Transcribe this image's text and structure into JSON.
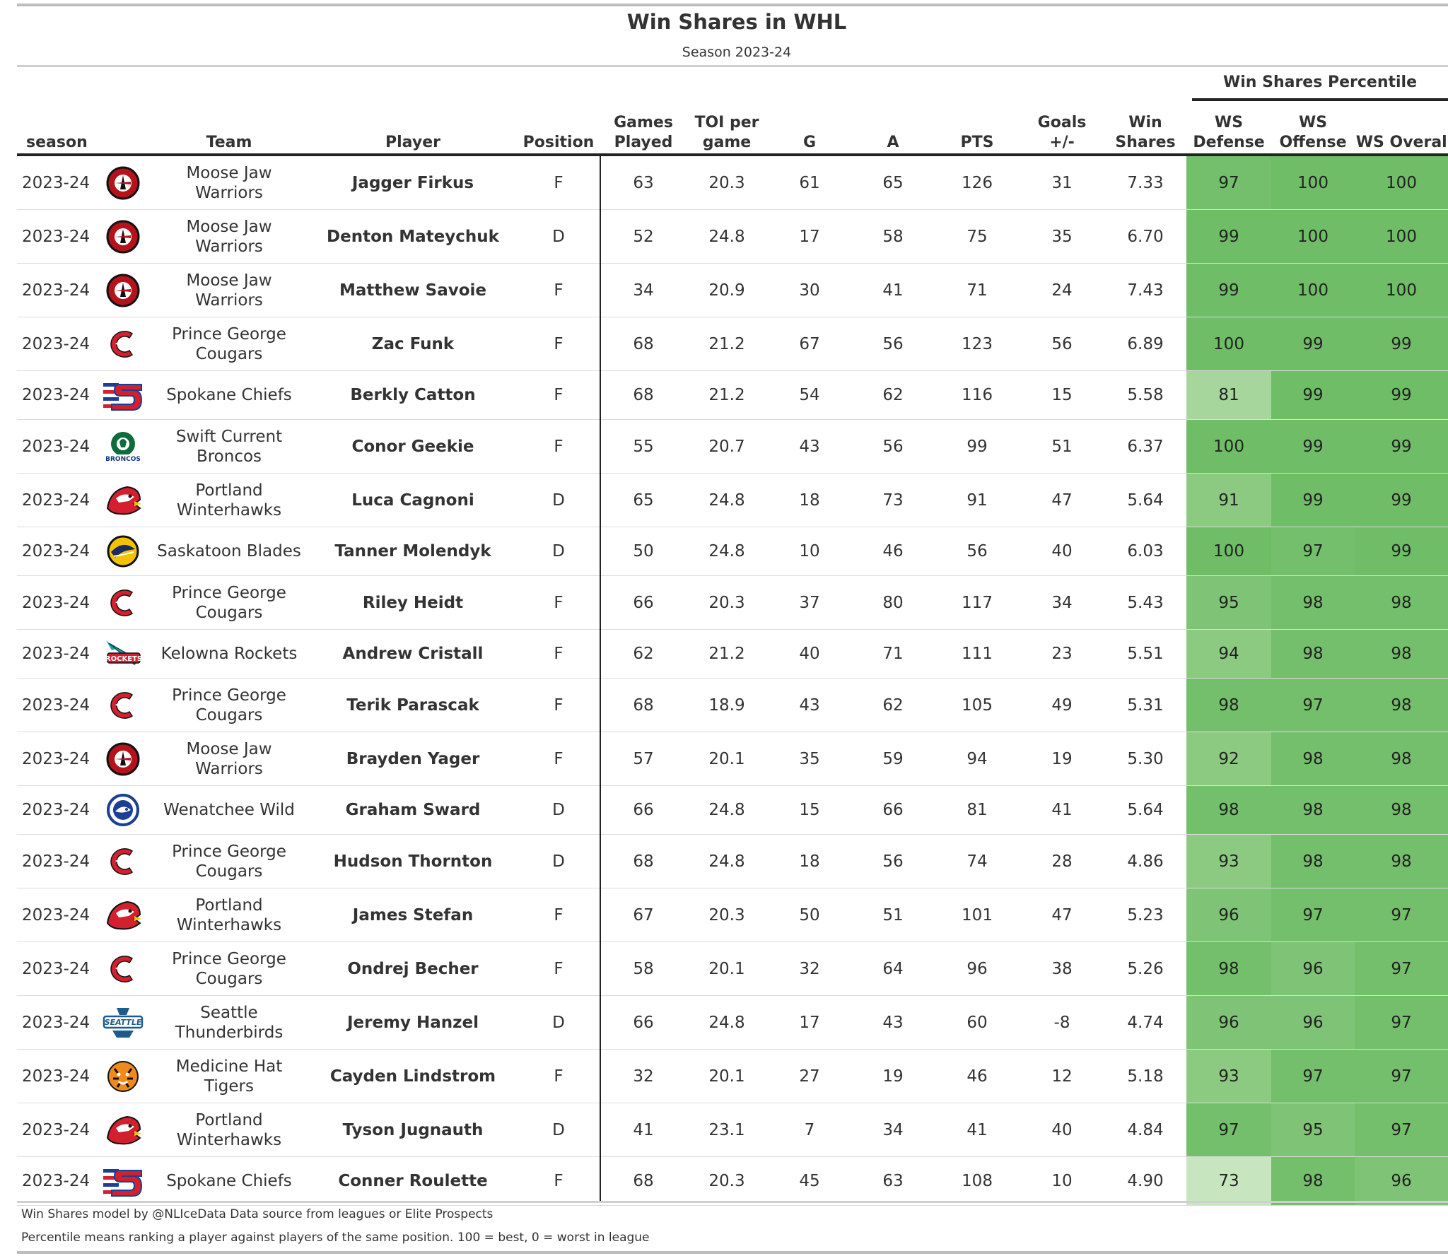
{
  "title": "Win Shares in WHL",
  "subtitle": "Season 2023-24",
  "spanner_label": "Win Shares Percentile",
  "footnotes": [
    "Win Shares model by @NLIceData Data source from leagues or Elite Prospects",
    "Percentile means ranking a player against players of the same position. 100 = best, 0 = worst in league"
  ],
  "colors": {
    "header_rule": "#222222",
    "percentile_scale": [
      "#c7e6c0",
      "#a7d69d",
      "#8cca82",
      "#7fc476",
      "#74bf6b",
      "#6fbd66"
    ]
  },
  "chart_data": {
    "type": "table",
    "columns": [
      "season",
      "Team",
      "Player",
      "Position",
      "Games\nPlayed",
      "TOI per\ngame",
      "G",
      "A",
      "PTS",
      "Goals\n+/-",
      "Win\nShares",
      "WS\nDefense",
      "WS\nOffense",
      "WS Overall"
    ],
    "rows": [
      {
        "season": "2023-24",
        "team": "Moose Jaw\nWarriors",
        "logo": "moose-jaw-warriors-logo",
        "player": "Jagger Firkus",
        "position": "F",
        "gp": "63",
        "toi": "20.3",
        "g": "61",
        "a": "65",
        "pts": "126",
        "pm": "31",
        "ws": "7.33",
        "ws_def": 97,
        "ws_off": 100,
        "ws_all": 100
      },
      {
        "season": "2023-24",
        "team": "Moose Jaw\nWarriors",
        "logo": "moose-jaw-warriors-logo",
        "player": "Denton Mateychuk",
        "position": "D",
        "gp": "52",
        "toi": "24.8",
        "g": "17",
        "a": "58",
        "pts": "75",
        "pm": "35",
        "ws": "6.70",
        "ws_def": 99,
        "ws_off": 100,
        "ws_all": 100
      },
      {
        "season": "2023-24",
        "team": "Moose Jaw\nWarriors",
        "logo": "moose-jaw-warriors-logo",
        "player": "Matthew Savoie",
        "position": "F",
        "gp": "34",
        "toi": "20.9",
        "g": "30",
        "a": "41",
        "pts": "71",
        "pm": "24",
        "ws": "7.43",
        "ws_def": 99,
        "ws_off": 100,
        "ws_all": 100
      },
      {
        "season": "2023-24",
        "team": "Prince George\nCougars",
        "logo": "prince-george-cougars-logo",
        "player": "Zac Funk",
        "position": "F",
        "gp": "68",
        "toi": "21.2",
        "g": "67",
        "a": "56",
        "pts": "123",
        "pm": "56",
        "ws": "6.89",
        "ws_def": 100,
        "ws_off": 99,
        "ws_all": 99
      },
      {
        "season": "2023-24",
        "team": "Spokane Chiefs",
        "logo": "spokane-chiefs-logo",
        "player": "Berkly Catton",
        "position": "F",
        "gp": "68",
        "toi": "21.2",
        "g": "54",
        "a": "62",
        "pts": "116",
        "pm": "15",
        "ws": "5.58",
        "ws_def": 81,
        "ws_off": 99,
        "ws_all": 99
      },
      {
        "season": "2023-24",
        "team": "Swift Current\nBroncos",
        "logo": "swift-current-broncos-logo",
        "player": "Conor Geekie",
        "position": "F",
        "gp": "55",
        "toi": "20.7",
        "g": "43",
        "a": "56",
        "pts": "99",
        "pm": "51",
        "ws": "6.37",
        "ws_def": 100,
        "ws_off": 99,
        "ws_all": 99
      },
      {
        "season": "2023-24",
        "team": "Portland\nWinterhawks",
        "logo": "portland-winterhawks-logo",
        "player": "Luca Cagnoni",
        "position": "D",
        "gp": "65",
        "toi": "24.8",
        "g": "18",
        "a": "73",
        "pts": "91",
        "pm": "47",
        "ws": "5.64",
        "ws_def": 91,
        "ws_off": 99,
        "ws_all": 99
      },
      {
        "season": "2023-24",
        "team": "Saskatoon Blades",
        "logo": "saskatoon-blades-logo",
        "player": "Tanner Molendyk",
        "position": "D",
        "gp": "50",
        "toi": "24.8",
        "g": "10",
        "a": "46",
        "pts": "56",
        "pm": "40",
        "ws": "6.03",
        "ws_def": 100,
        "ws_off": 97,
        "ws_all": 99
      },
      {
        "season": "2023-24",
        "team": "Prince George\nCougars",
        "logo": "prince-george-cougars-logo",
        "player": "Riley Heidt",
        "position": "F",
        "gp": "66",
        "toi": "20.3",
        "g": "37",
        "a": "80",
        "pts": "117",
        "pm": "34",
        "ws": "5.43",
        "ws_def": 95,
        "ws_off": 98,
        "ws_all": 98
      },
      {
        "season": "2023-24",
        "team": "Kelowna Rockets",
        "logo": "kelowna-rockets-logo",
        "player": "Andrew Cristall",
        "position": "F",
        "gp": "62",
        "toi": "21.2",
        "g": "40",
        "a": "71",
        "pts": "111",
        "pm": "23",
        "ws": "5.51",
        "ws_def": 94,
        "ws_off": 98,
        "ws_all": 98
      },
      {
        "season": "2023-24",
        "team": "Prince George\nCougars",
        "logo": "prince-george-cougars-logo",
        "player": "Terik Parascak",
        "position": "F",
        "gp": "68",
        "toi": "18.9",
        "g": "43",
        "a": "62",
        "pts": "105",
        "pm": "49",
        "ws": "5.31",
        "ws_def": 98,
        "ws_off": 97,
        "ws_all": 98
      },
      {
        "season": "2023-24",
        "team": "Moose Jaw\nWarriors",
        "logo": "moose-jaw-warriors-logo",
        "player": "Brayden Yager",
        "position": "F",
        "gp": "57",
        "toi": "20.1",
        "g": "35",
        "a": "59",
        "pts": "94",
        "pm": "19",
        "ws": "5.30",
        "ws_def": 92,
        "ws_off": 98,
        "ws_all": 98
      },
      {
        "season": "2023-24",
        "team": "Wenatchee Wild",
        "logo": "wenatchee-wild-logo",
        "player": "Graham Sward",
        "position": "D",
        "gp": "66",
        "toi": "24.8",
        "g": "15",
        "a": "66",
        "pts": "81",
        "pm": "41",
        "ws": "5.64",
        "ws_def": 98,
        "ws_off": 98,
        "ws_all": 98
      },
      {
        "season": "2023-24",
        "team": "Prince George\nCougars",
        "logo": "prince-george-cougars-logo",
        "player": "Hudson Thornton",
        "position": "D",
        "gp": "68",
        "toi": "24.8",
        "g": "18",
        "a": "56",
        "pts": "74",
        "pm": "28",
        "ws": "4.86",
        "ws_def": 93,
        "ws_off": 98,
        "ws_all": 98
      },
      {
        "season": "2023-24",
        "team": "Portland\nWinterhawks",
        "logo": "portland-winterhawks-logo",
        "player": "James Stefan",
        "position": "F",
        "gp": "67",
        "toi": "20.3",
        "g": "50",
        "a": "51",
        "pts": "101",
        "pm": "47",
        "ws": "5.23",
        "ws_def": 96,
        "ws_off": 97,
        "ws_all": 97
      },
      {
        "season": "2023-24",
        "team": "Prince George\nCougars",
        "logo": "prince-george-cougars-logo",
        "player": "Ondrej Becher",
        "position": "F",
        "gp": "58",
        "toi": "20.1",
        "g": "32",
        "a": "64",
        "pts": "96",
        "pm": "38",
        "ws": "5.26",
        "ws_def": 98,
        "ws_off": 96,
        "ws_all": 97
      },
      {
        "season": "2023-24",
        "team": "Seattle\nThunderbirds",
        "logo": "seattle-thunderbirds-logo",
        "player": "Jeremy Hanzel",
        "position": "D",
        "gp": "66",
        "toi": "24.8",
        "g": "17",
        "a": "43",
        "pts": "60",
        "pm": "-8",
        "ws": "4.74",
        "ws_def": 96,
        "ws_off": 96,
        "ws_all": 97
      },
      {
        "season": "2023-24",
        "team": "Medicine Hat\nTigers",
        "logo": "medicine-hat-tigers-logo",
        "player": "Cayden Lindstrom",
        "position": "F",
        "gp": "32",
        "toi": "20.1",
        "g": "27",
        "a": "19",
        "pts": "46",
        "pm": "12",
        "ws": "5.18",
        "ws_def": 93,
        "ws_off": 97,
        "ws_all": 97
      },
      {
        "season": "2023-24",
        "team": "Portland\nWinterhawks",
        "logo": "portland-winterhawks-logo",
        "player": "Tyson Jugnauth",
        "position": "D",
        "gp": "41",
        "toi": "23.1",
        "g": "7",
        "a": "34",
        "pts": "41",
        "pm": "40",
        "ws": "4.84",
        "ws_def": 97,
        "ws_off": 95,
        "ws_all": 97
      },
      {
        "season": "2023-24",
        "team": "Spokane Chiefs",
        "logo": "spokane-chiefs-logo",
        "player": "Conner Roulette",
        "position": "F",
        "gp": "68",
        "toi": "20.3",
        "g": "45",
        "a": "63",
        "pts": "108",
        "pm": "10",
        "ws": "4.90",
        "ws_def": 73,
        "ws_off": 98,
        "ws_all": 96
      }
    ]
  }
}
